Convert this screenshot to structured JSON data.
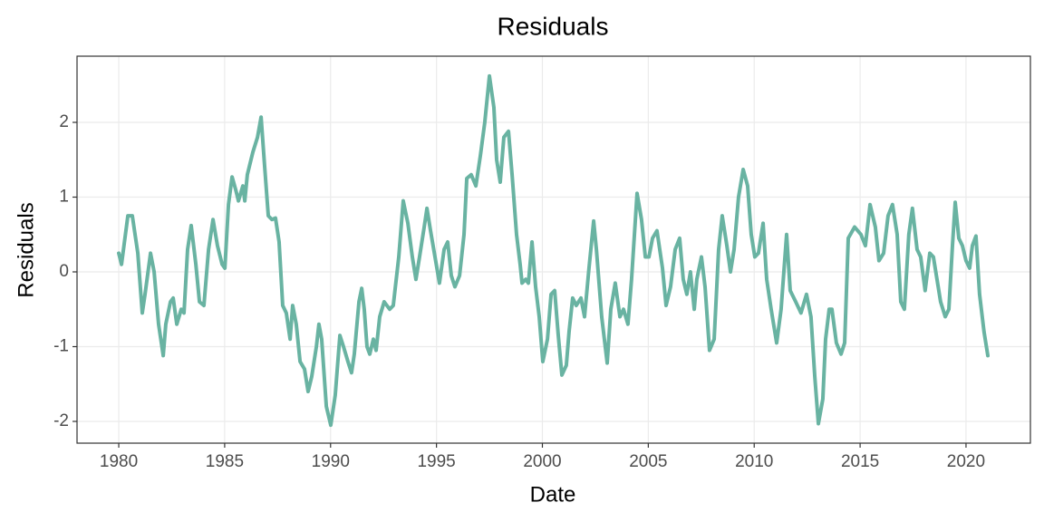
{
  "chart_data": {
    "type": "line",
    "title": "Residuals",
    "x_label": "Date",
    "y_label": "Residuals",
    "xlim": [
      1978.03,
      2023.04
    ],
    "ylim": [
      -2.291,
      2.885
    ],
    "xticks": [
      1980,
      1985,
      1990,
      1995,
      2000,
      2005,
      2010,
      2015,
      2020
    ],
    "yticks": [
      -2,
      -1,
      0,
      1,
      2
    ],
    "grid": true,
    "series": [
      {
        "name": "Residuals",
        "color": "#69b3a2",
        "x": [
          1980.0,
          1980.13,
          1980.43,
          1980.64,
          1980.9,
          1981.11,
          1981.24,
          1981.5,
          1981.67,
          1981.88,
          1982.1,
          1982.22,
          1982.44,
          1982.57,
          1982.74,
          1982.95,
          1983.08,
          1983.25,
          1983.42,
          1983.64,
          1983.81,
          1984.02,
          1984.24,
          1984.45,
          1984.66,
          1984.88,
          1985.01,
          1985.18,
          1985.35,
          1985.52,
          1985.65,
          1985.86,
          1985.95,
          1986.07,
          1986.33,
          1986.55,
          1986.72,
          1986.89,
          1987.06,
          1987.23,
          1987.4,
          1987.57,
          1987.74,
          1987.91,
          1988.09,
          1988.21,
          1988.38,
          1988.56,
          1988.77,
          1988.94,
          1989.11,
          1989.33,
          1989.45,
          1989.58,
          1989.8,
          1990.01,
          1990.22,
          1990.44,
          1990.61,
          1990.82,
          1990.99,
          1991.12,
          1991.34,
          1991.47,
          1991.59,
          1991.72,
          1991.85,
          1992.02,
          1992.15,
          1992.32,
          1992.53,
          1992.79,
          1992.96,
          1993.22,
          1993.43,
          1993.65,
          1993.86,
          1994.03,
          1994.2,
          1994.42,
          1994.55,
          1994.72,
          1994.93,
          1995.14,
          1995.36,
          1995.53,
          1995.7,
          1995.87,
          1996.09,
          1996.3,
          1996.43,
          1996.64,
          1996.86,
          1997.07,
          1997.28,
          1997.5,
          1997.71,
          1997.84,
          1998.01,
          1998.18,
          1998.4,
          1998.57,
          1998.78,
          1998.95,
          1999.04,
          1999.21,
          1999.34,
          1999.51,
          1999.68,
          1999.85,
          2000.02,
          2000.24,
          2000.41,
          2000.58,
          2000.75,
          2000.92,
          2001.13,
          2001.26,
          2001.43,
          2001.6,
          2001.82,
          2001.99,
          2002.2,
          2002.42,
          2002.55,
          2002.8,
          2003.06,
          2003.23,
          2003.44,
          2003.66,
          2003.83,
          2004.04,
          2004.21,
          2004.47,
          2004.68,
          2004.86,
          2005.03,
          2005.2,
          2005.41,
          2005.67,
          2005.84,
          2006.05,
          2006.27,
          2006.48,
          2006.65,
          2006.82,
          2006.99,
          2007.17,
          2007.29,
          2007.51,
          2007.68,
          2007.89,
          2008.11,
          2008.32,
          2008.49,
          2008.71,
          2008.88,
          2009.05,
          2009.26,
          2009.48,
          2009.69,
          2009.86,
          2010.03,
          2010.2,
          2010.42,
          2010.59,
          2010.8,
          2011.06,
          2011.27,
          2011.53,
          2011.7,
          2011.96,
          2012.21,
          2012.47,
          2012.68,
          2012.86,
          2013.03,
          2013.24,
          2013.37,
          2013.54,
          2013.67,
          2013.88,
          2014.1,
          2014.27,
          2014.44,
          2014.74,
          2015.04,
          2015.25,
          2015.47,
          2015.72,
          2015.89,
          2016.11,
          2016.32,
          2016.53,
          2016.75,
          2016.92,
          2017.09,
          2017.3,
          2017.47,
          2017.69,
          2017.86,
          2018.07,
          2018.29,
          2018.46,
          2018.63,
          2018.8,
          2019.02,
          2019.19,
          2019.36,
          2019.49,
          2019.66,
          2019.83,
          2020.0,
          2020.17,
          2020.3,
          2020.47,
          2020.64,
          2020.85,
          2021.03
        ],
        "values": [
          0.25,
          0.1,
          0.75,
          0.75,
          0.25,
          -0.55,
          -0.3,
          0.25,
          0.0,
          -0.7,
          -1.12,
          -0.7,
          -0.4,
          -0.35,
          -0.7,
          -0.5,
          -0.55,
          0.3,
          0.62,
          0.1,
          -0.4,
          -0.45,
          0.3,
          0.7,
          0.35,
          0.1,
          0.05,
          0.9,
          1.27,
          1.1,
          0.95,
          1.15,
          0.95,
          1.3,
          1.6,
          1.8,
          2.07,
          1.4,
          0.75,
          0.7,
          0.72,
          0.4,
          -0.45,
          -0.55,
          -0.9,
          -0.45,
          -0.7,
          -1.2,
          -1.3,
          -1.6,
          -1.4,
          -1.0,
          -0.7,
          -0.9,
          -1.8,
          -2.05,
          -1.65,
          -0.85,
          -1.0,
          -1.2,
          -1.35,
          -1.1,
          -0.4,
          -0.22,
          -0.5,
          -1.0,
          -1.1,
          -0.9,
          -1.05,
          -0.6,
          -0.4,
          -0.5,
          -0.45,
          0.2,
          0.95,
          0.65,
          0.2,
          -0.1,
          0.2,
          0.6,
          0.85,
          0.55,
          0.2,
          -0.15,
          0.3,
          0.4,
          -0.05,
          -0.2,
          -0.05,
          0.5,
          1.25,
          1.3,
          1.15,
          1.55,
          2.0,
          2.62,
          2.2,
          1.5,
          1.2,
          1.8,
          1.88,
          1.3,
          0.5,
          0.1,
          -0.15,
          -0.1,
          -0.15,
          0.4,
          -0.2,
          -0.6,
          -1.2,
          -0.9,
          -0.3,
          -0.25,
          -0.85,
          -1.38,
          -1.25,
          -0.8,
          -0.35,
          -0.45,
          -0.35,
          -0.6,
          0.05,
          0.68,
          0.3,
          -0.6,
          -1.22,
          -0.5,
          -0.15,
          -0.6,
          -0.5,
          -0.7,
          -0.1,
          1.05,
          0.7,
          0.2,
          0.2,
          0.45,
          0.55,
          0.05,
          -0.45,
          -0.2,
          0.3,
          0.45,
          -0.1,
          -0.3,
          0.0,
          -0.5,
          -0.1,
          0.2,
          -0.2,
          -1.05,
          -0.9,
          0.3,
          0.75,
          0.35,
          0.0,
          0.3,
          1.0,
          1.37,
          1.15,
          0.5,
          0.2,
          0.25,
          0.65,
          -0.1,
          -0.5,
          -0.95,
          -0.5,
          0.5,
          -0.25,
          -0.4,
          -0.55,
          -0.3,
          -0.6,
          -1.4,
          -2.03,
          -1.7,
          -0.9,
          -0.5,
          -0.5,
          -0.95,
          -1.1,
          -0.95,
          0.45,
          0.6,
          0.5,
          0.35,
          0.9,
          0.6,
          0.15,
          0.25,
          0.75,
          0.9,
          0.5,
          -0.4,
          -0.5,
          0.5,
          0.85,
          0.3,
          0.2,
          -0.25,
          0.25,
          0.2,
          -0.1,
          -0.4,
          -0.6,
          -0.5,
          0.35,
          0.93,
          0.45,
          0.35,
          0.15,
          0.05,
          0.35,
          0.48,
          -0.3,
          -0.8,
          -1.12
        ]
      }
    ]
  }
}
